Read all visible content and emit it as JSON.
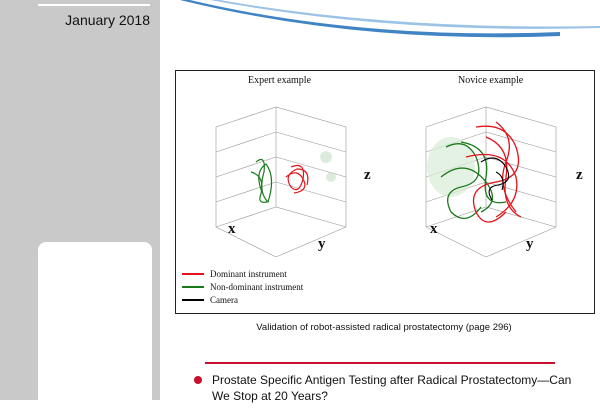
{
  "sidebar": {
    "date": "January 2018"
  },
  "figure": {
    "panels": [
      {
        "title": "Expert example",
        "x_label": "x",
        "y_label": "y",
        "z_label": "z"
      },
      {
        "title": "Novice example",
        "x_label": "x",
        "y_label": "y",
        "z_label": "z"
      }
    ],
    "legend": [
      {
        "label": "Dominant instrument",
        "color": "#e3131b"
      },
      {
        "label": "Non-dominant instrument",
        "color": "#1a7a1a"
      },
      {
        "label": "Camera",
        "color": "#000000"
      }
    ]
  },
  "caption": "Validation of robot-assisted radical prostatectomy (page 296)",
  "article": {
    "title": "Prostate Specific Antigen Testing after Radical Prostatectomy—Can We Stop at 20 Years?"
  },
  "colors": {
    "accent": "#c8102e",
    "sidebar": "#c9c9c9",
    "swoosh": "#1f6fb8"
  }
}
